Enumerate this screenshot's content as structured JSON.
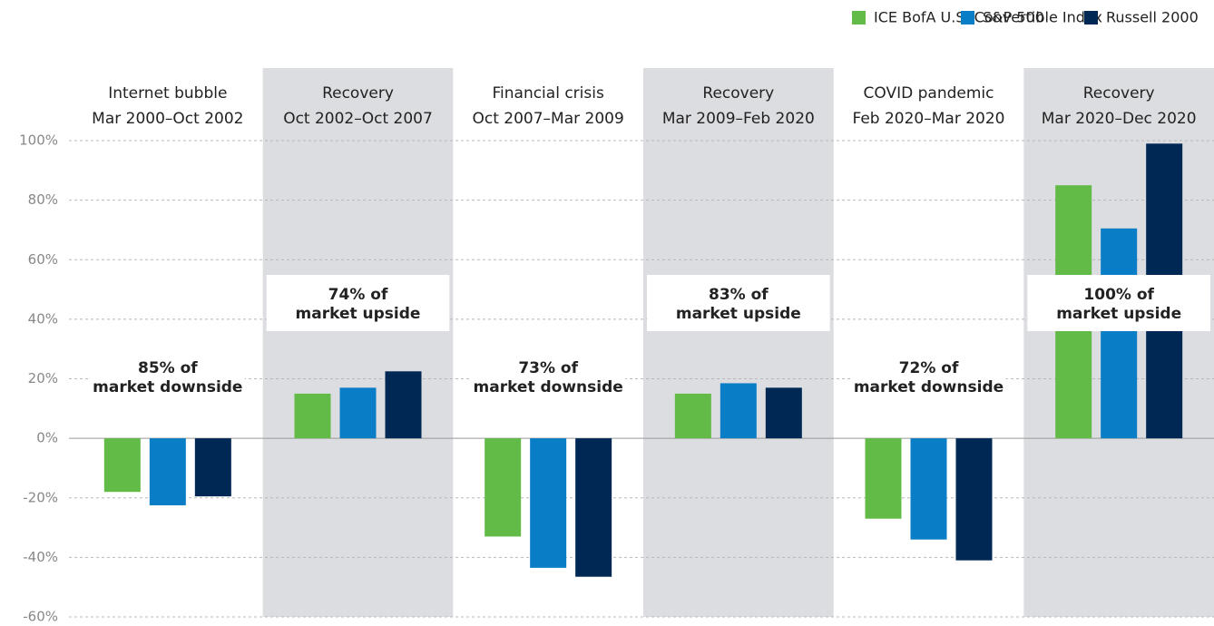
{
  "chart_data": {
    "type": "bar",
    "categories": [
      "Internet bubble",
      "Recovery",
      "Financial crisis",
      "Recovery",
      "COVID pandemic",
      "Recovery"
    ],
    "periods": [
      "Mar 2000–Oct 2002",
      "Oct 2002–Oct 2007",
      "Oct 2007–Mar 2009",
      "Mar 2009–Feb 2020",
      "Feb 2020–Mar 2020",
      "Mar 2020–Dec 2020"
    ],
    "shaded": [
      false,
      true,
      false,
      true,
      false,
      true
    ],
    "series": [
      {
        "name": "ICE BofA U.S. Convertible Index",
        "color": "#62bb46",
        "values": [
          -18,
          15,
          -33,
          15,
          -27,
          85
        ]
      },
      {
        "name": "S&P 500",
        "color": "#0a7dc7",
        "values": [
          -22.5,
          17,
          -43.5,
          18.5,
          -34,
          70.5
        ]
      },
      {
        "name": "Russell 2000",
        "color": "#002855",
        "values": [
          -19.5,
          22.5,
          -46.5,
          17,
          -41,
          99
        ]
      }
    ],
    "annotations": [
      [
        "85% of",
        "market downside"
      ],
      [
        "74% of",
        "market upside"
      ],
      [
        "73% of",
        "market downside"
      ],
      [
        "83% of",
        "market upside"
      ],
      [
        "72% of",
        "market downside"
      ],
      [
        "100% of",
        "market upside"
      ]
    ],
    "ylim": [
      -60,
      100
    ],
    "yticks": [
      {
        "value": -60,
        "label": "-60%"
      },
      {
        "value": -40,
        "label": "-40%"
      },
      {
        "value": -20,
        "label": "-20%"
      },
      {
        "value": 0,
        "label": "0%"
      },
      {
        "value": 20,
        "label": "20%"
      },
      {
        "value": 40,
        "label": "40%"
      },
      {
        "value": 60,
        "label": "60%"
      },
      {
        "value": 80,
        "label": "80%"
      },
      {
        "value": 100,
        "label": "100%"
      }
    ],
    "grid": true,
    "legend": "top-right"
  }
}
